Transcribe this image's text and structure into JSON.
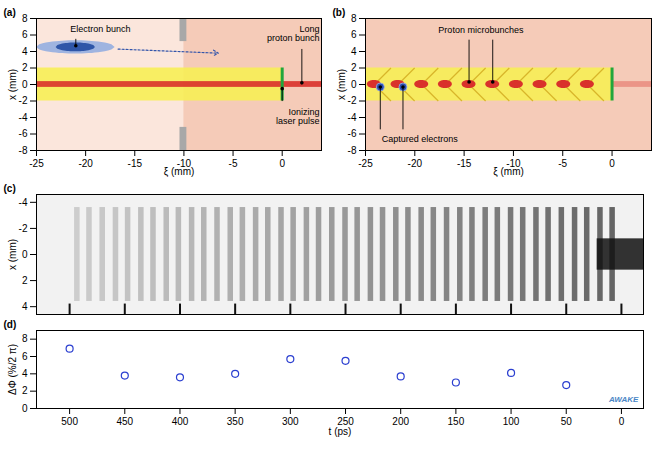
{
  "chart_data": [
    {
      "type": "diagram",
      "title": "(a)",
      "x_label": "ξ (mm)",
      "y_label": "x (mm)",
      "xlim": [
        -25,
        4
      ],
      "ylim": [
        -8,
        8
      ],
      "xticks": [
        -25,
        -20,
        -15,
        -10,
        -5,
        0
      ],
      "yticks": [
        -8,
        -6,
        -4,
        -2,
        0,
        2,
        4,
        6,
        8
      ],
      "plasma_xi": [
        -10,
        4
      ],
      "proton_bunch": {
        "xi": [
          -25,
          0
        ],
        "x": [
          -2,
          2
        ]
      },
      "beam_axis": {
        "xi": [
          -25,
          4
        ],
        "x": [
          -0.35,
          0.35
        ]
      },
      "laser": {
        "xi": 0,
        "x": [
          -2,
          2
        ]
      },
      "walls": [
        {
          "xi": [
            -10.4,
            -9.7
          ],
          "x": [
            5.2,
            8
          ]
        },
        {
          "xi": [
            -10.4,
            -9.7
          ],
          "x": [
            -8,
            -5.2
          ]
        }
      ],
      "electron_bunch": {
        "xi": -21,
        "x": 4.5,
        "length": 8,
        "width": 1.6,
        "to": [
          -6.5,
          3.8
        ]
      },
      "annotations": [
        {
          "text": "Electron bunch",
          "x": -18.5,
          "y": 6.7,
          "to": [
            [
              -21,
              4.7
            ]
          ]
        },
        {
          "text": "Long proton bunch",
          "x": 3.8,
          "y": 6.2,
          "to": [
            [
              2,
              0.2
            ]
          ]
        },
        {
          "text": "Ionizing laser pulse",
          "x": 3.8,
          "y": -3.9,
          "to": [
            [
              0,
              -0.5
            ]
          ]
        }
      ]
    },
    {
      "type": "diagram",
      "title": "(b)",
      "x_label": "ξ (mm)",
      "y_label": "x (mm)",
      "xlim": [
        -25,
        4
      ],
      "ylim": [
        -8,
        8
      ],
      "xticks": [
        -25,
        -20,
        -15,
        -10,
        -5,
        0
      ],
      "yticks": [
        -8,
        -6,
        -4,
        -2,
        0,
        2,
        4,
        6,
        8
      ],
      "plasma_xi": [
        -25,
        4
      ],
      "proton_bunch": {
        "xi": [
          -25,
          0
        ],
        "x": [
          -2,
          2
        ]
      },
      "beam_axis": {
        "xi": [
          0,
          4
        ],
        "x": [
          -0.35,
          0.35
        ]
      },
      "laser": {
        "xi": 0,
        "x": [
          -2,
          2
        ]
      },
      "microbunches": {
        "xi": [
          -2.5,
          -4.9,
          -7.3,
          -9.7,
          -12.1,
          -14.5,
          -16.9,
          -19.3,
          -21.7,
          -24.1
        ],
        "x": 0
      },
      "captured_electrons": {
        "xi": [
          -23.5,
          -21.2
        ],
        "x": [
          -0.3,
          -0.3
        ]
      },
      "annotations": [
        {
          "text": "Proton microbunches",
          "x": -13.3,
          "y": 6.6,
          "to": [
            [
              -14.5,
              0.3
            ],
            [
              -12.1,
              0.3
            ]
          ]
        },
        {
          "text": "Captured electrons",
          "x": -19.5,
          "y": -6.6,
          "to": [
            [
              -23.5,
              -0.3
            ],
            [
              -21.2,
              -0.3
            ]
          ]
        }
      ]
    },
    {
      "type": "image",
      "title": "(c)",
      "y_label": "x (mm)",
      "xlim": [
        530,
        -20
      ],
      "ylim": [
        4.6,
        -4.6
      ],
      "yticks": [
        -4,
        -2,
        0,
        2,
        4
      ],
      "tick_labels": "y",
      "microbunch_t": [
        8,
        19,
        31,
        42,
        54,
        66,
        77,
        89,
        100,
        112,
        123,
        135,
        146,
        158,
        170,
        181,
        193,
        204,
        216,
        227,
        239,
        250,
        262,
        274,
        285,
        297,
        308,
        320,
        331,
        343,
        354,
        366,
        378,
        389,
        401,
        412,
        424,
        435,
        447,
        458,
        470,
        482,
        493
      ],
      "microbunch_x": [
        -3.6,
        3.6
      ],
      "bunch_head": {
        "t": [
          22,
          -20
        ],
        "x": [
          -1.2,
          1.2
        ]
      },
      "timing_markers": [
        500,
        450,
        400,
        350,
        300,
        250,
        200,
        150,
        100,
        50,
        0
      ],
      "timing_marker_x": [
        3.8,
        4.6
      ]
    },
    {
      "type": "scatter",
      "title": "(d)",
      "x_label": "t (ps)",
      "y_label": "ΔΦ (%/2 π)",
      "xlim": [
        530,
        -20
      ],
      "ylim": [
        0,
        9
      ],
      "xticks": [
        500,
        450,
        400,
        350,
        300,
        250,
        200,
        150,
        100,
        50,
        0
      ],
      "yticks": [
        0,
        2,
        4,
        6,
        8
      ],
      "x": [
        500,
        450,
        400,
        350,
        300,
        250,
        200,
        150,
        100,
        50
      ],
      "values": [
        6.9,
        3.8,
        3.6,
        4.0,
        5.7,
        5.5,
        3.7,
        3.0,
        4.1,
        2.7
      ],
      "color": "#2b3fd0",
      "marker": "circle_open",
      "annotations": [
        {
          "text": "AWAKE",
          "x": -2,
          "y": 1
        }
      ]
    }
  ]
}
